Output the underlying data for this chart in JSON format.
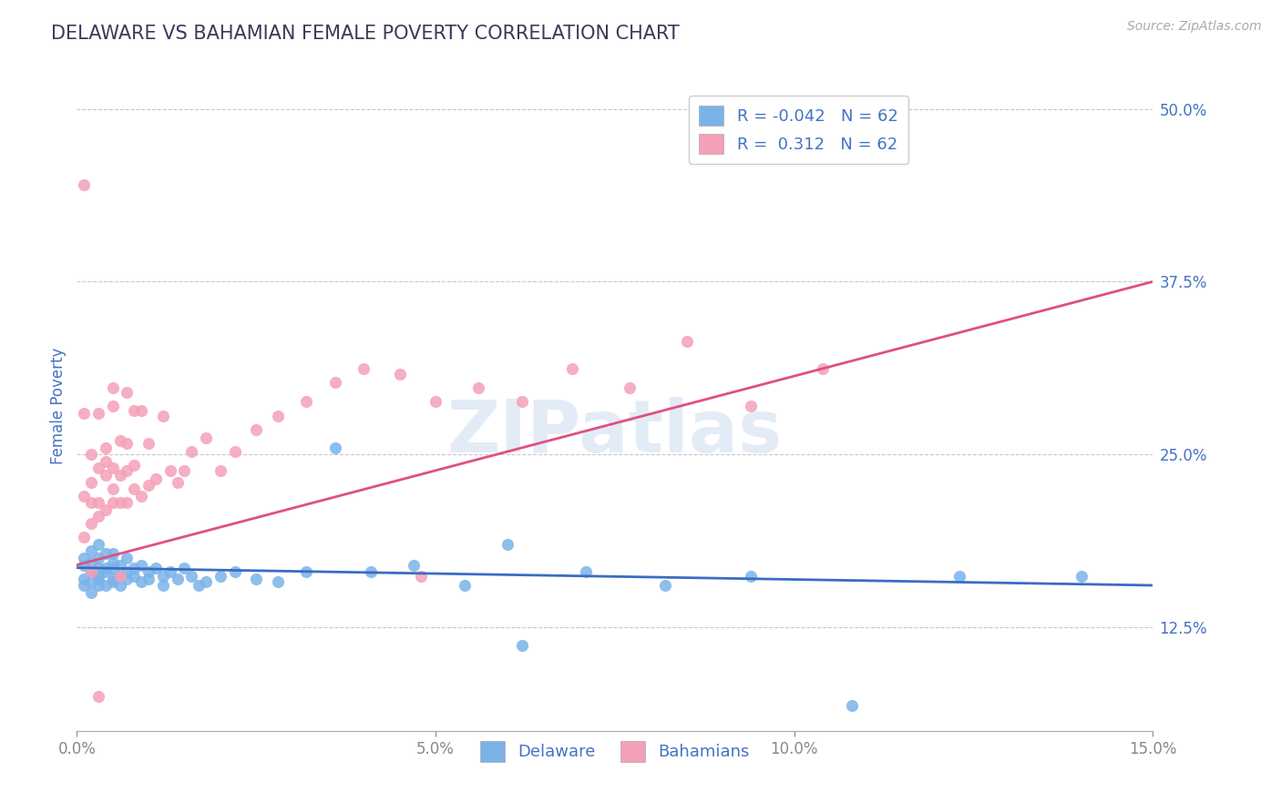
{
  "title": "DELAWARE VS BAHAMIAN FEMALE POVERTY CORRELATION CHART",
  "source_text": "Source: ZipAtlas.com",
  "ylabel": "Female Poverty",
  "watermark": "ZIPatlas",
  "xlim": [
    0.0,
    0.15
  ],
  "ylim": [
    0.05,
    0.52
  ],
  "xticks": [
    0.0,
    0.05,
    0.1,
    0.15
  ],
  "xticklabels": [
    "0.0%",
    "5.0%",
    "10.0%",
    "15.0%"
  ],
  "yticks": [
    0.125,
    0.25,
    0.375,
    0.5
  ],
  "yticklabels": [
    "12.5%",
    "25.0%",
    "37.5%",
    "50.0%"
  ],
  "legend_r_delaware": "-0.042",
  "legend_r_bahamians": "0.312",
  "legend_n": "62",
  "color_delaware": "#7ab3e8",
  "color_bahamians": "#f4a0b8",
  "color_delaware_line": "#3a6cc4",
  "color_bahamians_line": "#e05080",
  "title_color": "#3a3a5a",
  "axis_color": "#4472c4",
  "grid_color": "#c8c8c8",
  "background_color": "#ffffff",
  "delaware_x": [
    0.001,
    0.001,
    0.001,
    0.001,
    0.002,
    0.002,
    0.002,
    0.002,
    0.002,
    0.003,
    0.003,
    0.003,
    0.003,
    0.003,
    0.003,
    0.004,
    0.004,
    0.004,
    0.004,
    0.005,
    0.005,
    0.005,
    0.005,
    0.005,
    0.006,
    0.006,
    0.006,
    0.007,
    0.007,
    0.007,
    0.008,
    0.008,
    0.009,
    0.009,
    0.01,
    0.01,
    0.011,
    0.012,
    0.012,
    0.013,
    0.014,
    0.015,
    0.016,
    0.017,
    0.018,
    0.02,
    0.022,
    0.025,
    0.028,
    0.032,
    0.036,
    0.041,
    0.047,
    0.054,
    0.062,
    0.071,
    0.082,
    0.094,
    0.108,
    0.123,
    0.14,
    0.06
  ],
  "delaware_y": [
    0.17,
    0.16,
    0.155,
    0.175,
    0.165,
    0.158,
    0.172,
    0.15,
    0.18,
    0.168,
    0.162,
    0.175,
    0.185,
    0.155,
    0.16,
    0.168,
    0.178,
    0.155,
    0.165,
    0.16,
    0.172,
    0.158,
    0.168,
    0.178,
    0.162,
    0.155,
    0.17,
    0.165,
    0.16,
    0.175,
    0.162,
    0.168,
    0.158,
    0.17,
    0.165,
    0.16,
    0.168,
    0.162,
    0.155,
    0.165,
    0.16,
    0.168,
    0.162,
    0.155,
    0.158,
    0.162,
    0.165,
    0.16,
    0.158,
    0.165,
    0.255,
    0.165,
    0.17,
    0.155,
    0.112,
    0.165,
    0.155,
    0.162,
    0.068,
    0.162,
    0.162,
    0.185
  ],
  "bahamians_x": [
    0.001,
    0.001,
    0.001,
    0.002,
    0.002,
    0.002,
    0.002,
    0.003,
    0.003,
    0.003,
    0.003,
    0.004,
    0.004,
    0.004,
    0.005,
    0.005,
    0.005,
    0.005,
    0.006,
    0.006,
    0.006,
    0.007,
    0.007,
    0.007,
    0.008,
    0.008,
    0.008,
    0.009,
    0.009,
    0.01,
    0.01,
    0.011,
    0.012,
    0.013,
    0.014,
    0.015,
    0.016,
    0.018,
    0.02,
    0.022,
    0.025,
    0.028,
    0.032,
    0.036,
    0.04,
    0.045,
    0.05,
    0.056,
    0.062,
    0.069,
    0.077,
    0.085,
    0.094,
    0.104,
    0.001,
    0.002,
    0.003,
    0.004,
    0.005,
    0.006,
    0.007,
    0.048
  ],
  "bahamians_y": [
    0.22,
    0.28,
    0.19,
    0.25,
    0.2,
    0.23,
    0.215,
    0.205,
    0.24,
    0.28,
    0.215,
    0.255,
    0.21,
    0.245,
    0.215,
    0.225,
    0.24,
    0.285,
    0.215,
    0.26,
    0.235,
    0.215,
    0.258,
    0.238,
    0.242,
    0.282,
    0.225,
    0.22,
    0.282,
    0.228,
    0.258,
    0.232,
    0.278,
    0.238,
    0.23,
    0.238,
    0.252,
    0.262,
    0.238,
    0.252,
    0.268,
    0.278,
    0.288,
    0.302,
    0.312,
    0.308,
    0.288,
    0.298,
    0.288,
    0.312,
    0.298,
    0.332,
    0.285,
    0.312,
    0.445,
    0.165,
    0.075,
    0.235,
    0.298,
    0.162,
    0.295,
    0.162
  ]
}
